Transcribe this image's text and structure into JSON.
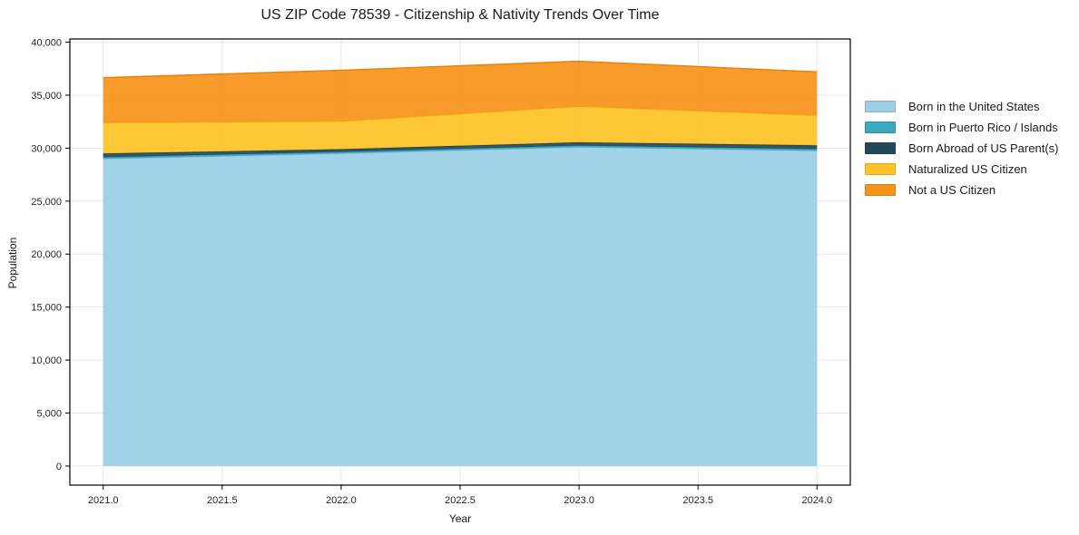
{
  "figure": {
    "title": "US ZIP Code 78539 - Citizenship & Nativity Trends Over Time"
  },
  "chart_data": {
    "type": "area",
    "stacked": true,
    "title": "US ZIP Code 78539 - Citizenship & Nativity Trends Over Time",
    "xlabel": "Year",
    "ylabel": "Population",
    "x": [
      2021,
      2022,
      2023,
      2024
    ],
    "series": [
      {
        "name": "Born in the United States",
        "color": "#9ACFE6",
        "edge": "#7fbcd9",
        "values": [
          29000,
          29500,
          30100,
          29750
        ]
      },
      {
        "name": "Born in Puerto Rico / Islands",
        "color": "#3AA8BE",
        "edge": "#2f93a7",
        "values": [
          150,
          150,
          150,
          170
        ]
      },
      {
        "name": "Born Abroad of US Parent(s)",
        "color": "#23485C",
        "edge": "#1a3a4b",
        "values": [
          350,
          250,
          300,
          350
        ]
      },
      {
        "name": "Naturalized US Citizen",
        "color": "#FEC326",
        "edge": "#eab012",
        "values": [
          2900,
          2650,
          3400,
          2830
        ]
      },
      {
        "name": "Not a US Citizen",
        "color": "#F8931A",
        "edge": "#e48210",
        "values": [
          4250,
          4800,
          4250,
          4100
        ]
      }
    ],
    "totals": [
      36650,
      37350,
      38200,
      37200
    ],
    "xticks": {
      "values": [
        2021.0,
        2021.5,
        2022.0,
        2022.5,
        2023.0,
        2023.5,
        2024.0
      ],
      "labels": [
        "2021.0",
        "2021.5",
        "2022.0",
        "2022.5",
        "2023.0",
        "2023.5",
        "2024.0"
      ]
    },
    "yticks": {
      "values": [
        0,
        5000,
        10000,
        15000,
        20000,
        25000,
        30000,
        35000,
        40000
      ],
      "labels": [
        "0",
        "5,000",
        "10,000",
        "15,000",
        "20,000",
        "25,000",
        "30,000",
        "35,000",
        "40,000"
      ]
    },
    "xlim": [
      2020.86,
      2024.14
    ],
    "ylim": [
      -1800,
      40300
    ],
    "grid": true,
    "legend_position": "right-outside"
  },
  "colors": {
    "spine": "#000000",
    "grid": "#e7e7e7",
    "tick_text": "#262626",
    "background": "#ffffff"
  }
}
